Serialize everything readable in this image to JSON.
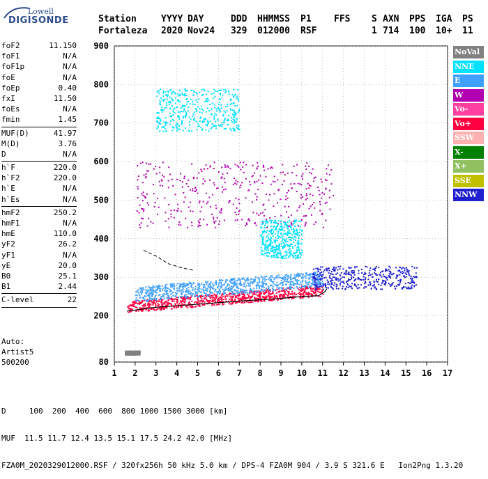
{
  "logo": {
    "top": "Lowell",
    "bottom": "DIGISONDE"
  },
  "header": {
    "row1": [
      "Station",
      "YYYY",
      "DAY",
      "DDD",
      "HHMMSS",
      "P1",
      "FFS",
      "S",
      "AXN",
      "PPS",
      "IGA",
      "PS"
    ],
    "row2": [
      "Fortaleza",
      "2020",
      "Nov24",
      "329",
      "012000",
      "RSF",
      "",
      "1",
      "714",
      "100",
      "10+",
      "11"
    ]
  },
  "params": [
    {
      "label": "foF2",
      "value": "11.150"
    },
    {
      "label": "foF1",
      "value": "N/A"
    },
    {
      "label": "foF1p",
      "value": "N/A"
    },
    {
      "label": "foE",
      "value": "N/A"
    },
    {
      "label": "foEp",
      "value": "0.40"
    },
    {
      "label": "fxI",
      "value": "11.50"
    },
    {
      "label": "foEs",
      "value": "N/A"
    },
    {
      "label": "fmin",
      "value": "1.45"
    },
    {
      "sep": true
    },
    {
      "label": "MUF(D)",
      "value": "41.97"
    },
    {
      "label": "M(D)",
      "value": "3.76"
    },
    {
      "label": "D",
      "value": "N/A"
    },
    {
      "sep": true
    },
    {
      "label": "h`F",
      "value": "220.0"
    },
    {
      "label": "h`F2",
      "value": "220.0"
    },
    {
      "label": "h`E",
      "value": "N/A"
    },
    {
      "label": "h`Es",
      "value": "N/A"
    },
    {
      "sep": true
    },
    {
      "label": "hmF2",
      "value": "250.2"
    },
    {
      "label": "hmF1",
      "value": "N/A"
    },
    {
      "label": "hmE",
      "value": "110.0"
    },
    {
      "label": "yF2",
      "value": "26.2"
    },
    {
      "label": "yF1",
      "value": "N/A"
    },
    {
      "label": "yE",
      "value": "20.0"
    },
    {
      "label": "B0",
      "value": "25.1"
    },
    {
      "label": "B1",
      "value": "2.44"
    },
    {
      "sep": true
    },
    {
      "label": "C-level",
      "value": "22"
    },
    {
      "sep": true
    }
  ],
  "auto": {
    "line1": "Auto:",
    "line2": "Artist5",
    "line3": "500200"
  },
  "legend": [
    {
      "label": "NoVal",
      "color": "#808080"
    },
    {
      "label": "NNE",
      "color": "#00e0ff"
    },
    {
      "label": "E",
      "color": "#40a0ff"
    },
    {
      "label": "W",
      "color": "#b000b0"
    },
    {
      "label": "Vo-",
      "color": "#ff40a0"
    },
    {
      "label": "Vo+",
      "color": "#ff0040"
    },
    {
      "label": "SSW",
      "color": "#ffb0b0"
    },
    {
      "label": "X-",
      "color": "#008000"
    },
    {
      "label": "X+",
      "color": "#90c060"
    },
    {
      "label": "SSE",
      "color": "#c0c000"
    },
    {
      "label": "NNW",
      "color": "#2020d0"
    }
  ],
  "footer": {
    "line1": "D     100  200  400  600  800 1000 1500 3000 [km]",
    "line2": "MUF  11.5 11.7 12.4 13.5 15.1 17.5 24.2 42.0 [MHz]",
    "line3": "FZA0M_2020329012000.RSF / 320fx256h 50 kHz 5.0 km / DPS-4 FZA0M 904 / 3.9 S 321.6 E   Ion2Png 1.3.20"
  },
  "chart_data": {
    "type": "scatter",
    "x_label": "",
    "y_label": "",
    "xlim": [
      1,
      17
    ],
    "ylim": [
      80,
      900
    ],
    "x_ticks": [
      1,
      2,
      3,
      4,
      5,
      6,
      7,
      8,
      9,
      10,
      11,
      12,
      13,
      14,
      15,
      16,
      17
    ],
    "y_ticks": [
      80,
      200,
      300,
      400,
      500,
      600,
      700,
      800,
      900
    ],
    "grid": true,
    "series": [
      {
        "color": "#ff0040",
        "region": "F-trace",
        "x_range": [
          1.6,
          11.0
        ],
        "h_range": [
          205,
          300
        ]
      },
      {
        "color": "#40a0ff",
        "region": "F-trace-upper",
        "x_range": [
          2.0,
          11.0
        ],
        "h_range": [
          240,
          330
        ]
      },
      {
        "color": "#2020d0",
        "region": "spread-F",
        "x_range": [
          10.5,
          15.5
        ],
        "h_range": [
          270,
          330
        ]
      },
      {
        "color": "#b000b0",
        "region": "second-hop",
        "x_range": [
          2.0,
          11.5
        ],
        "h_range": [
          430,
          600
        ]
      },
      {
        "color": "#00e0ff",
        "region": "third-hop",
        "x_range": [
          3.0,
          7.0
        ],
        "h_range": [
          680,
          790
        ]
      },
      {
        "color": "#00e0ff",
        "region": "spread-cyan",
        "x_range": [
          8.0,
          10.0
        ],
        "h_range": [
          350,
          450
        ]
      },
      {
        "color": "#808080",
        "region": "low-echo",
        "x_range": [
          1.5,
          2.2
        ],
        "h_range": [
          100,
          110
        ]
      }
    ],
    "profile_curve": {
      "x": [
        1.6,
        3,
        5,
        7,
        9,
        10,
        10.8,
        11.1,
        11.2
      ],
      "y": [
        212,
        222,
        230,
        238,
        245,
        250,
        252,
        262,
        270
      ]
    },
    "dashed_curve": {
      "x": [
        2.4,
        3.0,
        3.6,
        4.2,
        4.8
      ],
      "y": [
        370,
        355,
        335,
        325,
        318
      ]
    }
  }
}
